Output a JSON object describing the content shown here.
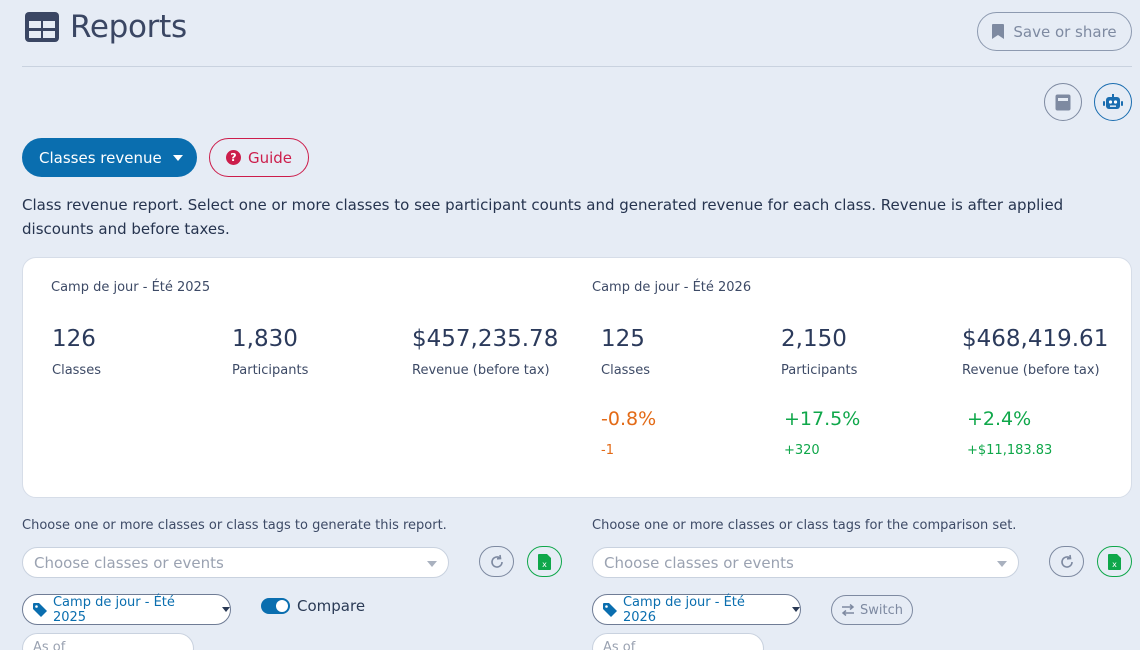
{
  "header": {
    "title": "Reports",
    "save_label": "Save or share"
  },
  "toolbar": {
    "report_selector_label": "Classes revenue",
    "guide_label": "Guide"
  },
  "description": "Class revenue report. Select one or more classes to see participant counts and generated revenue for each class. Revenue is after applied discounts and before taxes.",
  "summary": {
    "primary": {
      "set_name": "Camp de jour - Été 2025",
      "stats": [
        {
          "value": "126",
          "label": "Classes"
        },
        {
          "value": "1,830",
          "label": "Participants"
        },
        {
          "value": "$457,235.78",
          "label": "Revenue (before tax)"
        }
      ]
    },
    "comparison": {
      "set_name": "Camp de jour - Été 2026",
      "stats": [
        {
          "value": "125",
          "label": "Classes",
          "delta_pct": "-0.8%",
          "delta_abs": "-1",
          "trend": "negative"
        },
        {
          "value": "2,150",
          "label": "Participants",
          "delta_pct": "+17.5%",
          "delta_abs": "+320",
          "trend": "positive"
        },
        {
          "value": "$468,419.61",
          "label": "Revenue (before tax)",
          "delta_pct": "+2.4%",
          "delta_abs": "+$11,183.83",
          "trend": "positive"
        }
      ]
    }
  },
  "left_panel": {
    "label": "Choose one or more classes or class tags to generate this report.",
    "select_placeholder": "Choose classes or events",
    "tag": "Camp de jour - Été 2025",
    "compare_label": "Compare",
    "compare_enabled": true,
    "as_of_placeholder": "As of"
  },
  "right_panel": {
    "label": "Choose one or more classes or class tags for the comparison set.",
    "select_placeholder": "Choose classes or events",
    "tag": "Camp de jour - Été 2026",
    "switch_label": "Switch",
    "as_of_placeholder": "As of"
  },
  "colors": {
    "primary": "#0a6eaf",
    "guide": "#cc1d4b",
    "negative": "#e36a16",
    "positive": "#0fa74a",
    "background": "#e6ecf5"
  },
  "icons": [
    "reports-grid-icon",
    "bookmark-icon",
    "calculator-icon",
    "robot-icon",
    "question-icon",
    "refresh-icon",
    "excel-icon",
    "tag-icon",
    "switch-arrows-icon"
  ]
}
